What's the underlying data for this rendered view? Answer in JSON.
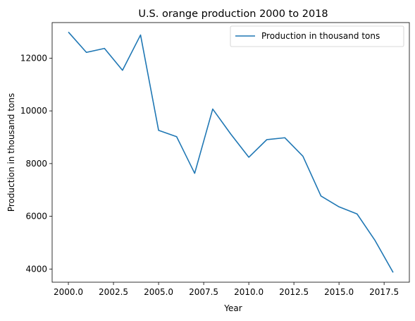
{
  "chart_data": {
    "type": "line",
    "title": "U.S. orange production 2000 to 2018",
    "xlabel": "Year",
    "ylabel": "Production in thousand tons",
    "xlim": [
      1999.1,
      2018.9
    ],
    "ylim": [
      3500,
      13350
    ],
    "xticks": [
      2000.0,
      2002.5,
      2005.0,
      2007.5,
      2010.0,
      2012.5,
      2015.0,
      2017.5
    ],
    "xtick_labels": [
      "2000.0",
      "2002.5",
      "2005.0",
      "2007.5",
      "2010.0",
      "2012.5",
      "2015.0",
      "2017.5"
    ],
    "yticks": [
      4000,
      6000,
      8000,
      10000,
      12000
    ],
    "ytick_labels": [
      "4000",
      "6000",
      "8000",
      "10000",
      "12000"
    ],
    "grid": false,
    "legend_position": "top-right",
    "series": [
      {
        "name": "Production in thousand tons",
        "color": "#1f77b4",
        "x": [
          2000,
          2001,
          2002,
          2003,
          2004,
          2005,
          2006,
          2007,
          2008,
          2009,
          2010,
          2011,
          2012,
          2013,
          2014,
          2015,
          2016,
          2017,
          2018
        ],
        "y": [
          12990,
          12220,
          12370,
          11540,
          12880,
          9260,
          9020,
          7630,
          10070,
          9120,
          8240,
          8910,
          8980,
          8280,
          6770,
          6360,
          6090,
          5080,
          3870
        ]
      }
    ]
  }
}
